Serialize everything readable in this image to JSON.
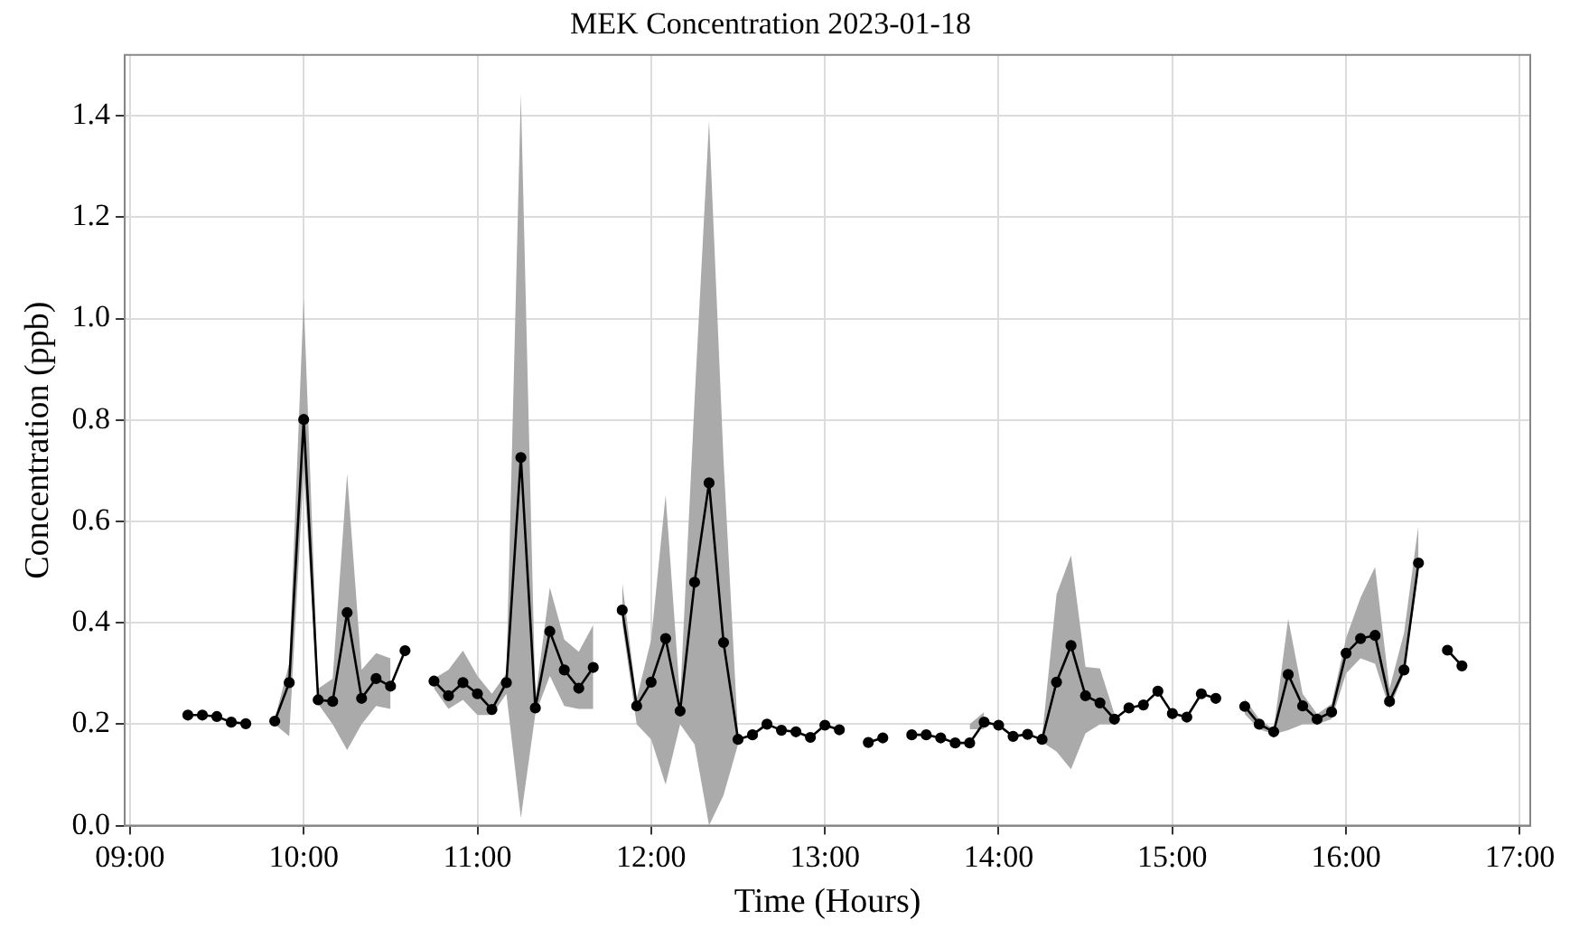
{
  "chart_data": {
    "type": "line",
    "title": "MEK Concentration 2023-01-18",
    "xlabel": "Time (Hours)",
    "ylabel": "Concentration (ppb)",
    "x": [
      9.3333,
      9.4167,
      9.5,
      9.5833,
      9.6667,
      9.75,
      9.8333,
      9.9167,
      10,
      10.0833,
      10.1667,
      10.25,
      10.3333,
      10.4167,
      10.5,
      10.5833,
      10.6667,
      10.75,
      10.8333,
      10.9167,
      11,
      11.0833,
      11.1667,
      11.25,
      11.3333,
      11.4167,
      11.5,
      11.5833,
      11.6667,
      11.75,
      11.8333,
      11.9167,
      12,
      12.0833,
      12.1667,
      12.25,
      12.3333,
      12.4167,
      12.5,
      12.5833,
      12.6667,
      12.75,
      12.8333,
      12.9167,
      13,
      13.0833,
      13.1667,
      13.25,
      13.3333,
      13.4167,
      13.5,
      13.5833,
      13.6667,
      13.75,
      13.8333,
      13.9167,
      14,
      14.0833,
      14.1667,
      14.25,
      14.3333,
      14.4167,
      14.5,
      14.5833,
      14.6667,
      14.75,
      14.8333,
      14.9167,
      15,
      15.0833,
      15.1667,
      15.25,
      15.3333,
      15.4167,
      15.5,
      15.5833,
      15.6667,
      15.75,
      15.8333,
      15.9167,
      16,
      16.0833,
      16.1667,
      16.25,
      16.3333,
      16.4167,
      16.5,
      16.5833,
      16.6667
    ],
    "series": [
      {
        "color": "#000000",
        "values": [
          0.218,
          0.218,
          0.215,
          0.204,
          0.201,
          null,
          0.206,
          0.282,
          0.801,
          0.248,
          0.245,
          0.42,
          0.251,
          0.29,
          0.275,
          0.345,
          null,
          0.285,
          0.256,
          0.282,
          0.26,
          0.229,
          0.282,
          0.726,
          0.232,
          0.383,
          0.307,
          0.271,
          0.312,
          null,
          0.425,
          0.236,
          0.283,
          0.369,
          0.226,
          0.48,
          0.676,
          0.361,
          0.17,
          0.179,
          0.2,
          0.188,
          0.185,
          0.174,
          0.198,
          0.189,
          null,
          0.164,
          0.173,
          null,
          0.179,
          0.179,
          0.173,
          0.163,
          0.163,
          0.204,
          0.198,
          0.176,
          0.18,
          0.17,
          0.283,
          0.355,
          0.256,
          0.242,
          0.21,
          0.232,
          0.238,
          0.265,
          0.221,
          0.214,
          0.26,
          0.251,
          null,
          0.235,
          0.2,
          0.185,
          0.298,
          0.236,
          0.21,
          0.224,
          0.34,
          0.369,
          0.375,
          0.245,
          0.307,
          0.518,
          null,
          0.346,
          0.315
        ],
        "lower": [
          null,
          null,
          null,
          null,
          null,
          null,
          0.2,
          0.176,
          0.7,
          0.24,
          0.2,
          0.149,
          0.2,
          0.236,
          0.23,
          null,
          null,
          0.27,
          0.23,
          0.248,
          0.218,
          0.218,
          0.26,
          0.015,
          0.22,
          0.295,
          0.236,
          0.23,
          0.23,
          null,
          0.4,
          0.2,
          0.17,
          0.081,
          0.2,
          0.16,
          0,
          0.06,
          0.16,
          null,
          null,
          null,
          null,
          null,
          null,
          null,
          null,
          null,
          null,
          null,
          null,
          null,
          null,
          null,
          0.19,
          0.19,
          null,
          null,
          null,
          0.165,
          0.146,
          0.111,
          0.182,
          0.2,
          0.2,
          null,
          null,
          null,
          null,
          null,
          null,
          null,
          null,
          0.22,
          0.19,
          0.18,
          0.188,
          0.2,
          0.2,
          0.21,
          0.3,
          0.33,
          0.319,
          0.23,
          0.3,
          0.5,
          null,
          null,
          null
        ],
        "upper": [
          null,
          null,
          null,
          null,
          null,
          null,
          0.21,
          0.32,
          1.04,
          0.27,
          0.29,
          0.694,
          0.307,
          0.34,
          0.33,
          null,
          null,
          0.29,
          0.307,
          0.345,
          0.295,
          0.26,
          0.3,
          1.444,
          0.25,
          0.47,
          0.367,
          0.343,
          0.396,
          null,
          0.48,
          0.25,
          0.367,
          0.652,
          0.25,
          0.84,
          1.39,
          0.72,
          0.18,
          null,
          null,
          null,
          null,
          null,
          null,
          null,
          null,
          null,
          null,
          null,
          null,
          null,
          null,
          null,
          0.2,
          0.224,
          null,
          null,
          null,
          0.175,
          0.456,
          0.533,
          0.313,
          0.31,
          0.22,
          null,
          null,
          null,
          null,
          null,
          null,
          null,
          null,
          0.25,
          0.21,
          0.19,
          0.408,
          0.26,
          0.22,
          0.24,
          0.37,
          0.45,
          0.51,
          0.27,
          0.38,
          0.593,
          null,
          null,
          null
        ]
      }
    ],
    "xlim": [
      8.97,
      17.06
    ],
    "ylim": [
      0,
      1.52
    ],
    "xticks": [
      {
        "value": 9,
        "label": "09:00"
      },
      {
        "value": 10,
        "label": "10:00"
      },
      {
        "value": 11,
        "label": "11:00"
      },
      {
        "value": 12,
        "label": "12:00"
      },
      {
        "value": 13,
        "label": "13:00"
      },
      {
        "value": 14,
        "label": "14:00"
      },
      {
        "value": 15,
        "label": "15:00"
      },
      {
        "value": 16,
        "label": "16:00"
      },
      {
        "value": 17,
        "label": "17:00"
      }
    ],
    "yticks": [
      {
        "value": 0,
        "label": "0.0"
      },
      {
        "value": 0.2,
        "label": "0.2"
      },
      {
        "value": 0.4,
        "label": "0.4"
      },
      {
        "value": 0.6,
        "label": "0.6"
      },
      {
        "value": 0.8,
        "label": "0.8"
      },
      {
        "value": 1,
        "label": "1.0"
      },
      {
        "value": 1.2,
        "label": "1.2"
      },
      {
        "value": 1.4,
        "label": "1.4"
      }
    ],
    "grid": true,
    "legend": false,
    "marker": "circle",
    "line_style": "solid"
  }
}
